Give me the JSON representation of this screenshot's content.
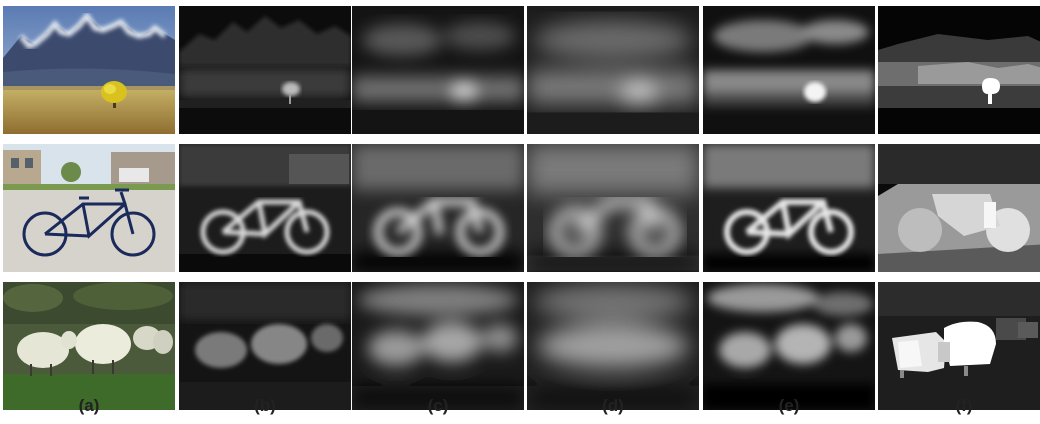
{
  "figure": {
    "columns": [
      {
        "label": "(a)",
        "content": "input photographs"
      },
      {
        "label": "(b)",
        "content": "grayscale saliency map"
      },
      {
        "label": "(c)",
        "content": "blurred saliency map"
      },
      {
        "label": "(d)",
        "content": "blurred saliency map"
      },
      {
        "label": "(e)",
        "content": "saliency map"
      },
      {
        "label": "(f)",
        "content": "segmented region map"
      }
    ],
    "rows": [
      {
        "subject": "mountain-landscape-with-yellow-tree"
      },
      {
        "subject": "blue-bicycle-on-driveway"
      },
      {
        "subject": "sheep-in-field"
      }
    ]
  }
}
